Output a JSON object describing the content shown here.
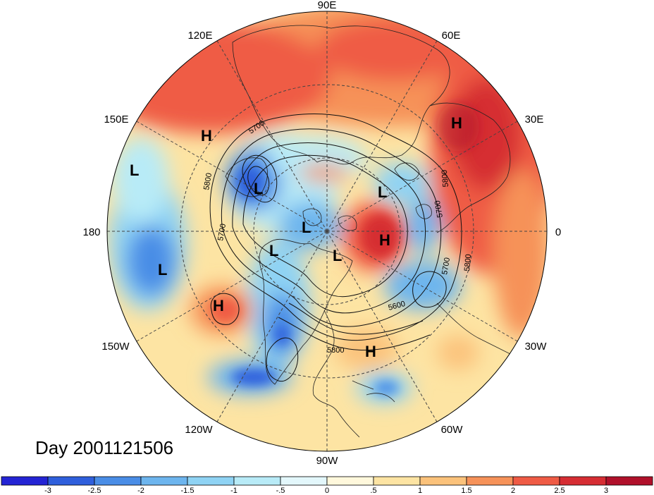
{
  "map": {
    "projection": "north-polar-stereographic",
    "longitude_labels": [
      {
        "text": "90E",
        "lon": 90
      },
      {
        "text": "60E",
        "lon": 60
      },
      {
        "text": "30E",
        "lon": 30
      },
      {
        "text": "0",
        "lon": 0
      },
      {
        "text": "30W",
        "lon": -30
      },
      {
        "text": "60W",
        "lon": -60
      },
      {
        "text": "90W",
        "lon": -90
      },
      {
        "text": "120W",
        "lon": -120
      },
      {
        "text": "150W",
        "lon": -150
      },
      {
        "text": "180",
        "lon": 180
      },
      {
        "text": "150E",
        "lon": 150
      },
      {
        "text": "120E",
        "lon": 120
      }
    ],
    "pressure_centers": [
      {
        "type": "H",
        "label": "H"
      },
      {
        "type": "H",
        "label": "H"
      },
      {
        "type": "H",
        "label": "H"
      },
      {
        "type": "H",
        "label": "H"
      },
      {
        "type": "H",
        "label": "H"
      },
      {
        "type": "L",
        "label": "L"
      },
      {
        "type": "L",
        "label": "L"
      },
      {
        "type": "L",
        "label": "L"
      },
      {
        "type": "L",
        "label": "L"
      },
      {
        "type": "L",
        "label": "L"
      },
      {
        "type": "L",
        "label": "L"
      },
      {
        "type": "L",
        "label": "L"
      }
    ],
    "contour_labels": [
      "5700",
      "5800",
      "5700",
      "5800",
      "5700",
      "5700",
      "5800",
      "5600",
      "5800"
    ],
    "day_label": "Day 2001121506"
  },
  "colorbar": {
    "tick_labels": [
      "-3",
      "-2.5",
      "-2",
      "-1.5",
      "-1",
      "-.5",
      "0",
      ".5",
      "1",
      "1.5",
      "2",
      "2.5",
      "3"
    ],
    "colors": [
      "#2424d4",
      "#2f5fdc",
      "#4a8de6",
      "#6db5ee",
      "#8fd3f4",
      "#b8ebf7",
      "#e3f7fb",
      "#fff8dc",
      "#fde4a3",
      "#fbc27b",
      "#f69259",
      "#ef5b45",
      "#d62d33",
      "#b0102a"
    ]
  }
}
